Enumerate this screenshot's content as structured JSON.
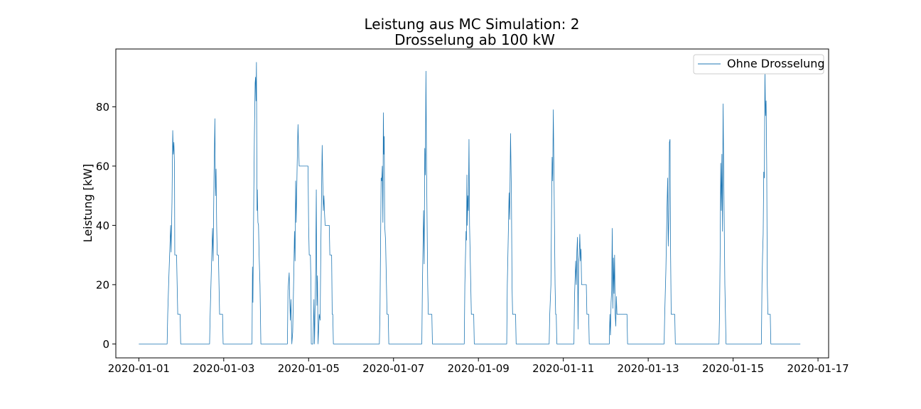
{
  "chart_data": {
    "type": "line",
    "title": [
      "Leistung aus MC Simulation: 2",
      "Drosselung ab 100 kW"
    ],
    "xlabel": "",
    "ylabel": "Leistung [kW]",
    "xlim": [
      "2019-12-31T11:00",
      "2020-01-17T06:00"
    ],
    "ylim": [
      -4.7,
      99.5
    ],
    "x_ticks": [
      "2020-01-01",
      "2020-01-03",
      "2020-01-05",
      "2020-01-07",
      "2020-01-09",
      "2020-01-11",
      "2020-01-13",
      "2020-01-15",
      "2020-01-17"
    ],
    "y_ticks": [
      0,
      20,
      40,
      60,
      80
    ],
    "legend": {
      "position": "upper right",
      "entries": [
        "Ohne Drosselung"
      ]
    },
    "grid": false,
    "series": [
      {
        "name": "Ohne Drosselung",
        "color": "#1f77b4",
        "points": [
          [
            "2020-01-01T00:00",
            0
          ],
          [
            "2020-01-01T16:00",
            0
          ],
          [
            "2020-01-01T16:20",
            10
          ],
          [
            "2020-01-01T17:00",
            23
          ],
          [
            "2020-01-01T18:00",
            40
          ],
          [
            "2020-01-01T18:15",
            31
          ],
          [
            "2020-01-01T18:45",
            48
          ],
          [
            "2020-01-01T19:10",
            72
          ],
          [
            "2020-01-01T19:30",
            64
          ],
          [
            "2020-01-01T19:50",
            68
          ],
          [
            "2020-01-01T20:10",
            60
          ],
          [
            "2020-01-01T20:20",
            30
          ],
          [
            "2020-01-01T21:20",
            30
          ],
          [
            "2020-01-01T21:40",
            20
          ],
          [
            "2020-01-01T22:00",
            10
          ],
          [
            "2020-01-01T23:20",
            10
          ],
          [
            "2020-01-01T23:40",
            0
          ],
          [
            "2020-01-02T16:00",
            0
          ],
          [
            "2020-01-02T16:20",
            10
          ],
          [
            "2020-01-02T17:00",
            25
          ],
          [
            "2020-01-02T17:40",
            39
          ],
          [
            "2020-01-02T18:00",
            28
          ],
          [
            "2020-01-02T18:30",
            56
          ],
          [
            "2020-01-02T19:00",
            76
          ],
          [
            "2020-01-02T19:20",
            50
          ],
          [
            "2020-01-02T19:40",
            59
          ],
          [
            "2020-01-02T20:00",
            40
          ],
          [
            "2020-01-02T20:20",
            30
          ],
          [
            "2020-01-02T21:00",
            30
          ],
          [
            "2020-01-02T21:20",
            20
          ],
          [
            "2020-01-02T21:40",
            10
          ],
          [
            "2020-01-02T23:20",
            10
          ],
          [
            "2020-01-02T23:40",
            0
          ],
          [
            "2020-01-03T16:00",
            0
          ],
          [
            "2020-01-03T16:15",
            26
          ],
          [
            "2020-01-03T16:30",
            14
          ],
          [
            "2020-01-03T17:00",
            50
          ],
          [
            "2020-01-03T17:20",
            70
          ],
          [
            "2020-01-03T17:45",
            88
          ],
          [
            "2020-01-03T18:00",
            90
          ],
          [
            "2020-01-03T18:15",
            82
          ],
          [
            "2020-01-03T18:30",
            95
          ],
          [
            "2020-01-03T18:50",
            45
          ],
          [
            "2020-01-03T19:00",
            52
          ],
          [
            "2020-01-03T19:20",
            41
          ],
          [
            "2020-01-03T19:40",
            40
          ],
          [
            "2020-01-03T20:00",
            30
          ],
          [
            "2020-01-03T20:30",
            20
          ],
          [
            "2020-01-03T21:00",
            0
          ],
          [
            "2020-01-04T12:00",
            0
          ],
          [
            "2020-01-04T12:20",
            18
          ],
          [
            "2020-01-04T13:00",
            24
          ],
          [
            "2020-01-04T13:20",
            15
          ],
          [
            "2020-01-04T13:40",
            8
          ],
          [
            "2020-01-04T14:00",
            15
          ],
          [
            "2020-01-04T14:15",
            8
          ],
          [
            "2020-01-04T14:30",
            0
          ],
          [
            "2020-01-04T15:00",
            4
          ],
          [
            "2020-01-04T15:40",
            25
          ],
          [
            "2020-01-04T16:00",
            38
          ],
          [
            "2020-01-04T16:20",
            28
          ],
          [
            "2020-01-04T16:40",
            55
          ],
          [
            "2020-01-04T17:00",
            41
          ],
          [
            "2020-01-04T17:30",
            60
          ],
          [
            "2020-01-04T18:00",
            74
          ],
          [
            "2020-01-04T18:15",
            68
          ],
          [
            "2020-01-04T18:40",
            60
          ],
          [
            "2020-01-04T23:40",
            60
          ],
          [
            "2020-01-05T00:00",
            40
          ],
          [
            "2020-01-05T00:20",
            30
          ],
          [
            "2020-01-05T01:00",
            30
          ],
          [
            "2020-01-05T01:20",
            20
          ],
          [
            "2020-01-05T01:30",
            0
          ],
          [
            "2020-01-05T02:30",
            0
          ],
          [
            "2020-01-05T03:00",
            15
          ],
          [
            "2020-01-05T03:20",
            0
          ],
          [
            "2020-01-05T04:00",
            25
          ],
          [
            "2020-01-05T04:20",
            52
          ],
          [
            "2020-01-05T04:40",
            13
          ],
          [
            "2020-01-05T05:00",
            23
          ],
          [
            "2020-01-05T05:20",
            0
          ],
          [
            "2020-01-05T06:00",
            10
          ],
          [
            "2020-01-05T06:30",
            8
          ],
          [
            "2020-01-05T07:00",
            37
          ],
          [
            "2020-01-05T07:40",
            67
          ],
          [
            "2020-01-05T08:00",
            55
          ],
          [
            "2020-01-05T08:20",
            45
          ],
          [
            "2020-01-05T08:40",
            50
          ],
          [
            "2020-01-05T09:00",
            44
          ],
          [
            "2020-01-05T09:20",
            40
          ],
          [
            "2020-01-05T11:40",
            40
          ],
          [
            "2020-01-05T12:00",
            30
          ],
          [
            "2020-01-05T13:00",
            30
          ],
          [
            "2020-01-05T13:20",
            10
          ],
          [
            "2020-01-05T13:40",
            10
          ],
          [
            "2020-01-05T14:00",
            0
          ],
          [
            "2020-01-06T16:00",
            0
          ],
          [
            "2020-01-06T16:20",
            10
          ],
          [
            "2020-01-06T17:00",
            56
          ],
          [
            "2020-01-06T17:20",
            55
          ],
          [
            "2020-01-06T17:40",
            60
          ],
          [
            "2020-01-06T18:00",
            41
          ],
          [
            "2020-01-06T18:15",
            78
          ],
          [
            "2020-01-06T18:30",
            64
          ],
          [
            "2020-01-06T18:45",
            70
          ],
          [
            "2020-01-06T19:00",
            40
          ],
          [
            "2020-01-06T19:30",
            35
          ],
          [
            "2020-01-06T20:00",
            20
          ],
          [
            "2020-01-06T20:20",
            10
          ],
          [
            "2020-01-06T21:00",
            10
          ],
          [
            "2020-01-06T21:20",
            0
          ],
          [
            "2020-01-07T16:00",
            0
          ],
          [
            "2020-01-07T16:20",
            20
          ],
          [
            "2020-01-07T17:00",
            45
          ],
          [
            "2020-01-07T17:20",
            27
          ],
          [
            "2020-01-07T17:40",
            66
          ],
          [
            "2020-01-07T18:00",
            57
          ],
          [
            "2020-01-07T18:20",
            92
          ],
          [
            "2020-01-07T18:40",
            60
          ],
          [
            "2020-01-07T19:00",
            40
          ],
          [
            "2020-01-07T19:20",
            20
          ],
          [
            "2020-01-07T19:40",
            10
          ],
          [
            "2020-01-07T21:40",
            10
          ],
          [
            "2020-01-07T22:00",
            0
          ],
          [
            "2020-01-08T16:00",
            0
          ],
          [
            "2020-01-08T16:20",
            20
          ],
          [
            "2020-01-08T17:00",
            38
          ],
          [
            "2020-01-08T17:15",
            35
          ],
          [
            "2020-01-08T17:30",
            57
          ],
          [
            "2020-01-08T17:45",
            40
          ],
          [
            "2020-01-08T18:00",
            50
          ],
          [
            "2020-01-08T18:20",
            45
          ],
          [
            "2020-01-08T18:40",
            69
          ],
          [
            "2020-01-08T19:00",
            40
          ],
          [
            "2020-01-08T19:20",
            30
          ],
          [
            "2020-01-08T19:40",
            20
          ],
          [
            "2020-01-08T20:00",
            10
          ],
          [
            "2020-01-08T21:20",
            10
          ],
          [
            "2020-01-08T21:40",
            0
          ],
          [
            "2020-01-09T16:00",
            0
          ],
          [
            "2020-01-09T16:20",
            20
          ],
          [
            "2020-01-09T17:00",
            40
          ],
          [
            "2020-01-09T17:20",
            51
          ],
          [
            "2020-01-09T17:40",
            42
          ],
          [
            "2020-01-09T18:10",
            71
          ],
          [
            "2020-01-09T18:40",
            50
          ],
          [
            "2020-01-09T19:00",
            20
          ],
          [
            "2020-01-09T19:20",
            10
          ],
          [
            "2020-01-09T21:00",
            10
          ],
          [
            "2020-01-09T21:20",
            0
          ],
          [
            "2020-01-10T16:00",
            0
          ],
          [
            "2020-01-10T16:20",
            10
          ],
          [
            "2020-01-10T17:00",
            20
          ],
          [
            "2020-01-10T17:20",
            44
          ],
          [
            "2020-01-10T17:40",
            63
          ],
          [
            "2020-01-10T18:00",
            55
          ],
          [
            "2020-01-10T18:20",
            79
          ],
          [
            "2020-01-10T18:40",
            60
          ],
          [
            "2020-01-10T19:00",
            40
          ],
          [
            "2020-01-10T19:20",
            20
          ],
          [
            "2020-01-10T19:40",
            10
          ],
          [
            "2020-01-10T20:00",
            10
          ],
          [
            "2020-01-10T20:20",
            0
          ],
          [
            "2020-01-11T06:00",
            0
          ],
          [
            "2020-01-11T06:20",
            16
          ],
          [
            "2020-01-11T07:00",
            28
          ],
          [
            "2020-01-11T07:20",
            20
          ],
          [
            "2020-01-11T07:40",
            31
          ],
          [
            "2020-01-11T08:00",
            36
          ],
          [
            "2020-01-11T08:20",
            5
          ],
          [
            "2020-01-11T08:40",
            27
          ],
          [
            "2020-01-11T09:00",
            30
          ],
          [
            "2020-01-11T09:20",
            37
          ],
          [
            "2020-01-11T09:40",
            28
          ],
          [
            "2020-01-11T10:00",
            32
          ],
          [
            "2020-01-11T10:20",
            20
          ],
          [
            "2020-01-11T13:00",
            20
          ],
          [
            "2020-01-11T13:20",
            10
          ],
          [
            "2020-01-11T14:20",
            10
          ],
          [
            "2020-01-11T14:40",
            0
          ],
          [
            "2020-01-12T02:00",
            0
          ],
          [
            "2020-01-12T02:20",
            10
          ],
          [
            "2020-01-12T02:40",
            3
          ],
          [
            "2020-01-12T03:00",
            14
          ],
          [
            "2020-01-12T03:20",
            18
          ],
          [
            "2020-01-12T03:40",
            39
          ],
          [
            "2020-01-12T04:00",
            12
          ],
          [
            "2020-01-12T04:20",
            29
          ],
          [
            "2020-01-12T04:40",
            17
          ],
          [
            "2020-01-12T05:00",
            30
          ],
          [
            "2020-01-12T05:20",
            10
          ],
          [
            "2020-01-12T05:40",
            6
          ],
          [
            "2020-01-12T06:00",
            16
          ],
          [
            "2020-01-12T06:20",
            10
          ],
          [
            "2020-01-12T12:00",
            10
          ],
          [
            "2020-01-12T12:20",
            0
          ],
          [
            "2020-01-13T09:00",
            0
          ],
          [
            "2020-01-13T09:20",
            10
          ],
          [
            "2020-01-13T10:00",
            25
          ],
          [
            "2020-01-13T10:40",
            47
          ],
          [
            "2020-01-13T11:00",
            56
          ],
          [
            "2020-01-13T11:20",
            33
          ],
          [
            "2020-01-13T11:40",
            42
          ],
          [
            "2020-01-13T12:00",
            68
          ],
          [
            "2020-01-13T12:20",
            69
          ],
          [
            "2020-01-13T12:40",
            30
          ],
          [
            "2020-01-13T13:00",
            10
          ],
          [
            "2020-01-13T15:00",
            10
          ],
          [
            "2020-01-13T15:20",
            0
          ],
          [
            "2020-01-14T16:00",
            0
          ],
          [
            "2020-01-14T16:20",
            10
          ],
          [
            "2020-01-14T16:40",
            30
          ],
          [
            "2020-01-14T17:00",
            61
          ],
          [
            "2020-01-14T17:20",
            45
          ],
          [
            "2020-01-14T17:40",
            64
          ],
          [
            "2020-01-14T18:00",
            38
          ],
          [
            "2020-01-14T18:20",
            81
          ],
          [
            "2020-01-14T18:40",
            60
          ],
          [
            "2020-01-14T19:00",
            40
          ],
          [
            "2020-01-14T19:20",
            20
          ],
          [
            "2020-01-14T19:40",
            10
          ],
          [
            "2020-01-14T20:00",
            0
          ],
          [
            "2020-01-15T16:00",
            0
          ],
          [
            "2020-01-15T16:20",
            20
          ],
          [
            "2020-01-15T16:40",
            30
          ],
          [
            "2020-01-15T17:00",
            37
          ],
          [
            "2020-01-15T17:20",
            58
          ],
          [
            "2020-01-15T17:40",
            56
          ],
          [
            "2020-01-15T18:00",
            92
          ],
          [
            "2020-01-15T18:20",
            77
          ],
          [
            "2020-01-15T18:40",
            82
          ],
          [
            "2020-01-15T19:00",
            60
          ],
          [
            "2020-01-15T19:20",
            20
          ],
          [
            "2020-01-15T19:40",
            10
          ],
          [
            "2020-01-15T21:00",
            10
          ],
          [
            "2020-01-15T21:20",
            0
          ],
          [
            "2020-01-16T14:00",
            0
          ]
        ]
      }
    ]
  }
}
